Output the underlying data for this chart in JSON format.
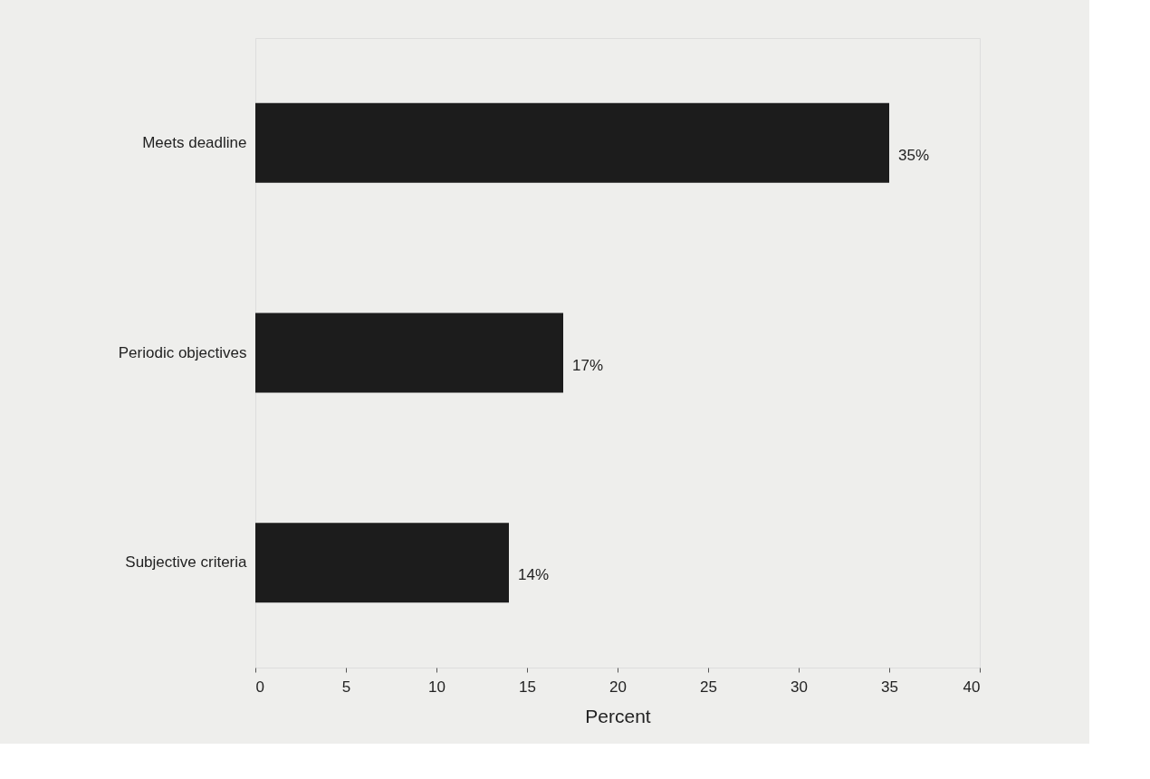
{
  "chart_data": {
    "type": "bar",
    "orientation": "horizontal",
    "xlabel": "Percent",
    "categories": [
      "Meets deadline",
      "Periodic objectives",
      "Subjective criteria"
    ],
    "values": [
      35,
      17,
      14
    ],
    "value_labels": [
      "35%",
      "17%",
      "14%"
    ],
    "color": "#1c1c1c",
    "xlim": [
      0,
      40
    ],
    "xticks": [
      0,
      5,
      10,
      15,
      20,
      25,
      30,
      35,
      40
    ],
    "grid": false
  }
}
